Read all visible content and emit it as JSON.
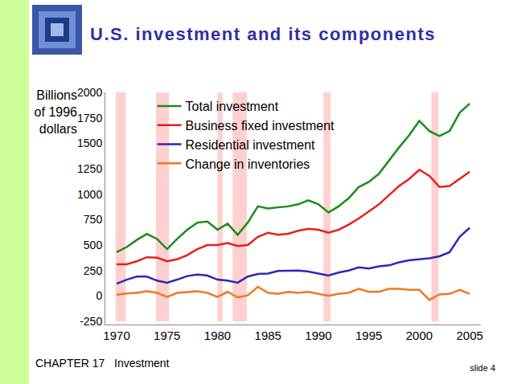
{
  "slide": {
    "footer": "CHAPTER 17   Investment",
    "page": "slide 4"
  },
  "chart_data": {
    "type": "line",
    "title": "U.S. investment and its components",
    "y_label": "Billions of 1996 dollars",
    "x": [
      1970,
      1971,
      1972,
      1973,
      1974,
      1975,
      1976,
      1977,
      1978,
      1979,
      1980,
      1981,
      1982,
      1983,
      1984,
      1985,
      1986,
      1987,
      1988,
      1989,
      1990,
      1991,
      1992,
      1993,
      1994,
      1995,
      1996,
      1997,
      1998,
      1999,
      2000,
      2001,
      2002,
      2003,
      2004,
      2005
    ],
    "series": [
      {
        "name": "Total investment",
        "color": "#1a8c1a",
        "values": [
          430,
          480,
          550,
          610,
          560,
          460,
          560,
          650,
          720,
          730,
          650,
          710,
          600,
          720,
          880,
          860,
          870,
          880,
          900,
          940,
          900,
          820,
          880,
          960,
          1070,
          1120,
          1200,
          1330,
          1460,
          1580,
          1720,
          1620,
          1570,
          1620,
          1800,
          1890
        ]
      },
      {
        "name": "Business fixed investment",
        "color": "#e8201a",
        "values": [
          310,
          310,
          340,
          380,
          375,
          340,
          360,
          400,
          460,
          500,
          500,
          520,
          490,
          500,
          580,
          620,
          600,
          610,
          640,
          660,
          650,
          620,
          650,
          700,
          760,
          830,
          900,
          990,
          1080,
          1150,
          1240,
          1180,
          1070,
          1080,
          1150,
          1220
        ]
      },
      {
        "name": "Residential investment",
        "color": "#2a2ab4",
        "values": [
          120,
          160,
          190,
          190,
          150,
          130,
          160,
          195,
          210,
          200,
          160,
          150,
          130,
          190,
          215,
          220,
          245,
          250,
          250,
          240,
          220,
          200,
          230,
          250,
          280,
          270,
          290,
          300,
          330,
          350,
          360,
          370,
          390,
          430,
          580,
          670
        ]
      },
      {
        "name": "Change in inventories",
        "color": "#f07820",
        "values": [
          10,
          25,
          30,
          45,
          30,
          -10,
          30,
          40,
          45,
          30,
          -10,
          40,
          -15,
          5,
          90,
          30,
          20,
          40,
          30,
          40,
          20,
          0,
          20,
          30,
          70,
          40,
          40,
          70,
          70,
          60,
          60,
          -40,
          15,
          20,
          60,
          20
        ]
      }
    ],
    "recessions": [
      [
        1969.9,
        1970.9
      ],
      [
        1973.9,
        1975.2
      ],
      [
        1980.0,
        1980.5
      ],
      [
        1981.5,
        1982.9
      ],
      [
        1990.5,
        1991.2
      ],
      [
        2001.2,
        2001.9
      ]
    ],
    "xlim": [
      1969.2,
      2006.1
    ],
    "xticks": [
      1970,
      1975,
      1980,
      1985,
      1990,
      1995,
      2000,
      2005
    ],
    "ylim": [
      -250,
      2000
    ],
    "yticks": [
      -250,
      0,
      250,
      500,
      750,
      1000,
      1250,
      1500,
      1750,
      2000
    ],
    "grid": false,
    "legend": "top-left"
  }
}
